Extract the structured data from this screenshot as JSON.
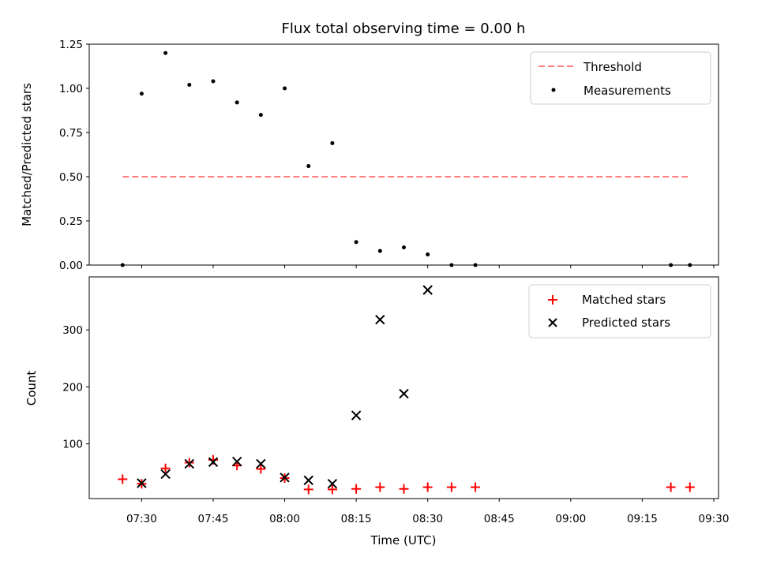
{
  "chart_data": [
    {
      "type": "scatter",
      "title": "Flux total observing time = 0.00 h",
      "xlabel": "",
      "ylabel": "Matched/Predicted stars",
      "xlim": [
        "07:19",
        "09:31"
      ],
      "ylim": [
        0,
        1.25
      ],
      "yticks": [
        "0.00",
        "0.25",
        "0.50",
        "0.75",
        "1.00",
        "1.25"
      ],
      "x_tick_labels_shown": false,
      "legend_position": "upper right",
      "series": [
        {
          "name": "Threshold",
          "style": "dashed-line",
          "color": "#ff7f7f",
          "x": [
            "07:26",
            "09:25"
          ],
          "y": [
            0.5,
            0.5
          ]
        },
        {
          "name": "Measurements",
          "style": "dot",
          "color": "#000000",
          "x": [
            "07:26",
            "07:30",
            "07:35",
            "07:40",
            "07:45",
            "07:50",
            "07:55",
            "08:00",
            "08:05",
            "08:10",
            "08:15",
            "08:20",
            "08:25",
            "08:30",
            "08:35",
            "08:40",
            "09:21",
            "09:25"
          ],
          "y": [
            0.0,
            0.97,
            1.2,
            1.02,
            1.04,
            0.92,
            0.85,
            1.0,
            0.56,
            0.69,
            0.13,
            0.08,
            0.1,
            0.06,
            0.0,
            0.0,
            0.0,
            0.0
          ]
        }
      ]
    },
    {
      "type": "scatter",
      "title": "",
      "xlabel": "Time (UTC)",
      "ylabel": "Count",
      "xlim": [
        "07:19",
        "09:31"
      ],
      "ylim": [
        4,
        393
      ],
      "yticks": [
        "100",
        "200",
        "300"
      ],
      "xticks": [
        "07:30",
        "07:45",
        "08:00",
        "08:15",
        "08:30",
        "08:45",
        "09:00",
        "09:15",
        "09:30"
      ],
      "legend_position": "upper right",
      "series": [
        {
          "name": "Matched stars",
          "marker": "+",
          "color": "#ff0000",
          "x": [
            "07:26",
            "07:30",
            "07:35",
            "07:40",
            "07:45",
            "07:50",
            "07:55",
            "08:00",
            "08:05",
            "08:10",
            "08:15",
            "08:20",
            "08:25",
            "08:30",
            "08:35",
            "08:40",
            "09:21",
            "09:25"
          ],
          "y": [
            38,
            30,
            57,
            67,
            72,
            62,
            56,
            40,
            20,
            20,
            21,
            24,
            21,
            24,
            24,
            24,
            24,
            24
          ]
        },
        {
          "name": "Predicted stars",
          "marker": "x",
          "color": "#000000",
          "x": [
            "07:30",
            "07:35",
            "07:40",
            "07:45",
            "07:50",
            "07:55",
            "08:00",
            "08:05",
            "08:10",
            "08:15",
            "08:20",
            "08:25",
            "08:30"
          ],
          "y": [
            31,
            47,
            65,
            68,
            69,
            65,
            41,
            36,
            30,
            150,
            318,
            188,
            370
          ]
        }
      ]
    }
  ]
}
